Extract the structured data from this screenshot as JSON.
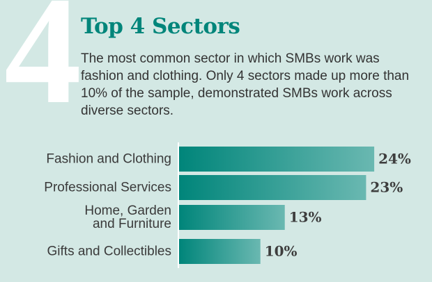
{
  "badge": "4",
  "chart_data": {
    "type": "bar",
    "orientation": "horizontal",
    "title": "Top 4 Sectors",
    "subtitle": "The most common sector in which SMBs work was fashion and clothing. Only 4 sectors made up more than 10% of the sample, demonstrated SMBs work across diverse sectors.",
    "categories": [
      "Fashion and Clothing",
      "Professional Services",
      "Home, Garden\nand Furniture",
      "Gifts and Collectibles"
    ],
    "values": [
      24,
      23,
      13,
      10
    ],
    "value_labels": [
      "24%",
      "23%",
      "13%",
      "10%"
    ],
    "color": [
      "#00857a",
      "#6ab8b1"
    ]
  }
}
